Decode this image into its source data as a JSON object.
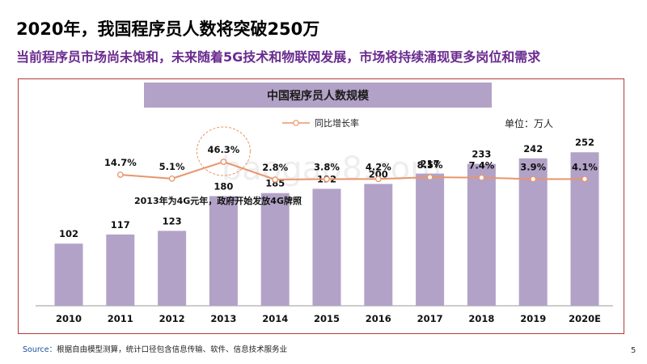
{
  "page": {
    "title": "2020年，我国程序员人数将突破250万",
    "subtitle": "当前程序员市场尚未饱和，未来随着5G技术和物联网发展，市场将持续涌现更多岗位和需求",
    "source_label": "Source：",
    "source_text": "根据自由模型测算，统计口径包含信息传输、软件、信息技术服务业",
    "page_number": "5",
    "watermark": "baogao8.com"
  },
  "chart_data": {
    "type": "bar",
    "title": "中国程序员人数规模",
    "unit": "单位：万人",
    "categories": [
      "2010",
      "2011",
      "2012",
      "2013",
      "2014",
      "2015",
      "2016",
      "2017",
      "2018",
      "2019",
      "2020E"
    ],
    "values": [
      102,
      117,
      123,
      180,
      185,
      192,
      200,
      217,
      233,
      242,
      252
    ],
    "line_series": {
      "name": "同比增长率",
      "labels": [
        "14.7%",
        "5.1%",
        "46.3%",
        "2.8%",
        "3.8%",
        "4.2%",
        "8.5%",
        "7.4%",
        "3.9%",
        "4.1%"
      ],
      "values": [
        14.7,
        5.1,
        46.3,
        2.8,
        3.8,
        4.2,
        8.5,
        7.4,
        3.9,
        4.1
      ]
    },
    "annotation": "2013年为4G元年，政府开始发放4G牌照",
    "colors": {
      "bar": "#b3a2c7",
      "line": "#e8956c",
      "frame": "#b33a3a",
      "highlight": "#e8956c"
    }
  }
}
